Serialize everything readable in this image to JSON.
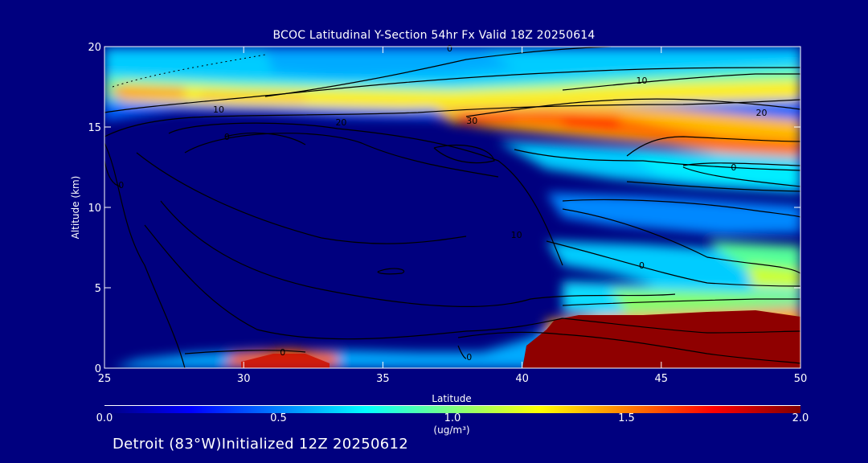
{
  "chart_data": {
    "type": "heatmap",
    "title": "BCOC Latitudinal Y-Section 54hr  Fx Valid 18Z 20250614",
    "xlabel": "Latitude",
    "ylabel": "Altitude (km)",
    "xlim": [
      25,
      50
    ],
    "ylim": [
      0,
      20
    ],
    "x_ticks": [
      "25",
      "30",
      "35",
      "40",
      "45",
      "50"
    ],
    "y_ticks": [
      "0",
      "5",
      "10",
      "15",
      "20"
    ],
    "colorbar": {
      "label": "(ug/m³)",
      "range": [
        0.0,
        2.0
      ],
      "ticks": [
        "0.0",
        "0.5",
        "1.0",
        "1.5",
        "2.0"
      ],
      "colormap": "jet"
    },
    "contour_labels": [
      "0",
      "0",
      "0",
      "0",
      "10",
      "10",
      "10",
      "20",
      "20",
      "30",
      "0",
      "0",
      "0"
    ],
    "grid": false
  },
  "footer": {
    "text": "Detroit (83°W)Initialized 12Z 20250612"
  },
  "colors": {
    "background": "#00007f",
    "foreground": "#ffffff",
    "contour": "#000000"
  }
}
